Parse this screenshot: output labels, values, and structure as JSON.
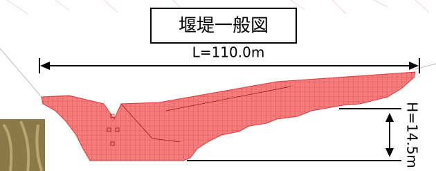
{
  "title": "堰堤一般図",
  "dimensions": {
    "length": "L=110.0m",
    "height": "H=14.5m"
  }
}
